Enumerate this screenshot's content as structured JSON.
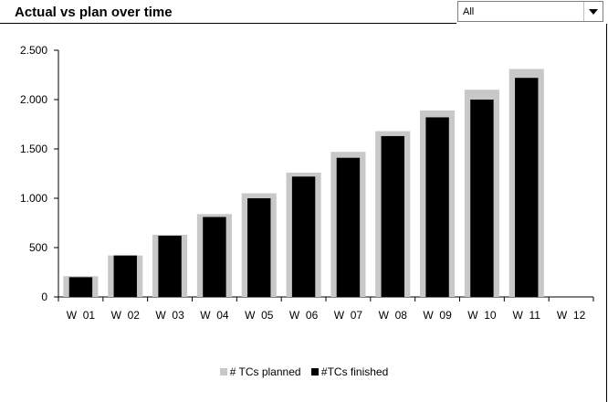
{
  "header": {
    "title": "Actual vs plan over time",
    "filter_value": "All"
  },
  "colors": {
    "planned": "#c8c8c8",
    "finished": "#000000"
  },
  "chart_data": {
    "type": "bar",
    "categories": [
      "W  01",
      "W  02",
      "W  03",
      "W  04",
      "W  05",
      "W  06",
      "W  07",
      "W  08",
      "W  09",
      "W  10",
      "W  11",
      "W  12"
    ],
    "series": [
      {
        "name": "# TCs planned",
        "values": [
          210,
          420,
          630,
          840,
          1050,
          1260,
          1470,
          1680,
          1890,
          2100,
          2310,
          null
        ]
      },
      {
        "name": "#TCs finished",
        "values": [
          200,
          420,
          620,
          810,
          1000,
          1220,
          1410,
          1630,
          1820,
          2000,
          2220,
          null
        ]
      }
    ],
    "ylim": [
      0,
      2500
    ],
    "yticks": [
      {
        "value": 0,
        "label": "0"
      },
      {
        "value": 500,
        "label": "500"
      },
      {
        "value": 1000,
        "label": "1.000"
      },
      {
        "value": 1500,
        "label": "1.500"
      },
      {
        "value": 2000,
        "label": "2.000"
      },
      {
        "value": 2500,
        "label": "2.500"
      }
    ],
    "xlabel": "",
    "ylabel": "",
    "grid": false,
    "legend_position": "bottom"
  },
  "legend": {
    "planned_label": "# TCs planned",
    "finished_label": "#TCs finished"
  }
}
